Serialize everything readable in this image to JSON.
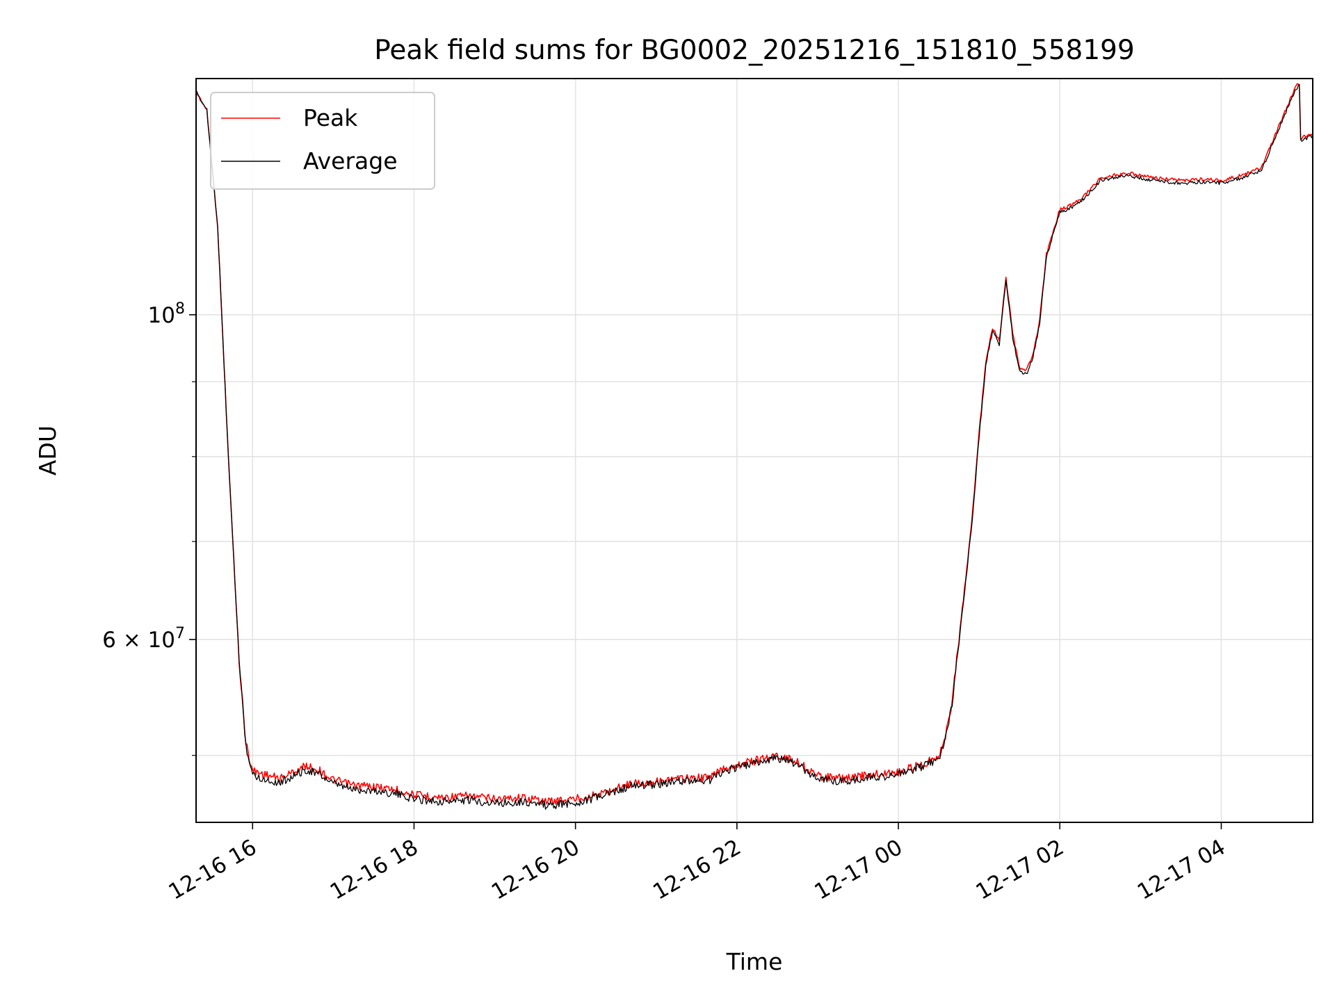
{
  "chart_data": {
    "type": "line",
    "title": "Peak field sums for BG0002_20251216_151810_558199",
    "xlabel": "Time",
    "ylabel": "ADU",
    "y_scale": "log",
    "grid": true,
    "legend_position": "top-left",
    "xlim": [
      "2025-12-16 15:18",
      "2025-12-17 05:08"
    ],
    "ylim": [
      45000000,
      145000000
    ],
    "x_ticks": [
      {
        "value": "2025-12-16 16:00",
        "label": "12-16 16"
      },
      {
        "value": "2025-12-16 18:00",
        "label": "12-16 18"
      },
      {
        "value": "2025-12-16 20:00",
        "label": "12-16 20"
      },
      {
        "value": "2025-12-16 22:00",
        "label": "12-16 22"
      },
      {
        "value": "2025-12-17 00:00",
        "label": "12-17 00"
      },
      {
        "value": "2025-12-17 02:00",
        "label": "12-17 02"
      },
      {
        "value": "2025-12-17 04:00",
        "label": "12-17 04"
      }
    ],
    "y_major_ticks": [
      {
        "value": 100000000,
        "mantissa": "",
        "base": "10",
        "exp": "8"
      },
      {
        "value": 60000000,
        "mantissa": "6 × ",
        "base": "10",
        "exp": "7"
      }
    ],
    "y_minor_ticks": [
      50000000,
      70000000,
      80000000,
      90000000
    ],
    "series": [
      {
        "name": "Peak",
        "color": "#ff0000",
        "points": [
          [
            "2025-12-16 15:18",
            142000000
          ],
          [
            "2025-12-16 15:26",
            138000000
          ],
          [
            "2025-12-16 15:34",
            115000000
          ],
          [
            "2025-12-16 15:42",
            80000000
          ],
          [
            "2025-12-16 15:50",
            58000000
          ],
          [
            "2025-12-16 15:55",
            51000000
          ],
          [
            "2025-12-16 16:00",
            48800000
          ],
          [
            "2025-12-16 16:10",
            48500000
          ],
          [
            "2025-12-16 16:20",
            48200000
          ],
          [
            "2025-12-16 16:30",
            48700000
          ],
          [
            "2025-12-16 16:40",
            49200000
          ],
          [
            "2025-12-16 16:50",
            48800000
          ],
          [
            "2025-12-16 17:00",
            48100000
          ],
          [
            "2025-12-16 17:15",
            47700000
          ],
          [
            "2025-12-16 17:30",
            47600000
          ],
          [
            "2025-12-16 17:45",
            47400000
          ],
          [
            "2025-12-16 18:00",
            47000000
          ],
          [
            "2025-12-16 18:20",
            46800000
          ],
          [
            "2025-12-16 18:40",
            46900000
          ],
          [
            "2025-12-16 19:00",
            46700000
          ],
          [
            "2025-12-16 19:20",
            46800000
          ],
          [
            "2025-12-16 19:40",
            46500000
          ],
          [
            "2025-12-16 20:00",
            46700000
          ],
          [
            "2025-12-16 20:20",
            47100000
          ],
          [
            "2025-12-16 20:40",
            47800000
          ],
          [
            "2025-12-16 21:00",
            48000000
          ],
          [
            "2025-12-16 21:20",
            48200000
          ],
          [
            "2025-12-16 21:40",
            48300000
          ],
          [
            "2025-12-16 21:50",
            49000000
          ],
          [
            "2025-12-16 22:10",
            49500000
          ],
          [
            "2025-12-16 22:30",
            50000000
          ],
          [
            "2025-12-16 22:45",
            49500000
          ],
          [
            "2025-12-16 23:00",
            48400000
          ],
          [
            "2025-12-16 23:20",
            48200000
          ],
          [
            "2025-12-16 23:40",
            48500000
          ],
          [
            "2025-12-17 00:00",
            48700000
          ],
          [
            "2025-12-17 00:20",
            49400000
          ],
          [
            "2025-12-17 00:30",
            50000000
          ],
          [
            "2025-12-17 00:35",
            51500000
          ],
          [
            "2025-12-17 00:40",
            54500000
          ],
          [
            "2025-12-17 00:45",
            60000000
          ],
          [
            "2025-12-17 00:50",
            66000000
          ],
          [
            "2025-12-17 00:55",
            73000000
          ],
          [
            "2025-12-17 01:00",
            83000000
          ],
          [
            "2025-12-17 01:05",
            93000000
          ],
          [
            "2025-12-17 01:10",
            98000000
          ],
          [
            "2025-12-17 01:15",
            96000000
          ],
          [
            "2025-12-17 01:20",
            106000000
          ],
          [
            "2025-12-17 01:25",
            97000000
          ],
          [
            "2025-12-17 01:30",
            92000000
          ],
          [
            "2025-12-17 01:35",
            91500000
          ],
          [
            "2025-12-17 01:40",
            94000000
          ],
          [
            "2025-12-17 01:45",
            99000000
          ],
          [
            "2025-12-17 01:50",
            110000000
          ],
          [
            "2025-12-17 02:00",
            118000000
          ],
          [
            "2025-12-17 02:10",
            119000000
          ],
          [
            "2025-12-17 02:20",
            121000000
          ],
          [
            "2025-12-17 02:30",
            124000000
          ],
          [
            "2025-12-17 02:50",
            125000000
          ],
          [
            "2025-12-17 03:10",
            124000000
          ],
          [
            "2025-12-17 03:30",
            123500000
          ],
          [
            "2025-12-17 03:50",
            123800000
          ],
          [
            "2025-12-17 04:00",
            123500000
          ],
          [
            "2025-12-17 04:15",
            124500000
          ],
          [
            "2025-12-17 04:30",
            126000000
          ],
          [
            "2025-12-17 04:45",
            136000000
          ],
          [
            "2025-12-17 04:55",
            143000000
          ],
          [
            "2025-12-17 04:58",
            144000000
          ],
          [
            "2025-12-17 04:59",
            132000000
          ],
          [
            "2025-12-17 05:08",
            133000000
          ]
        ]
      },
      {
        "name": "Average",
        "color": "#000000",
        "points": [
          [
            "2025-12-16 15:18",
            142000000
          ],
          [
            "2025-12-16 15:26",
            138000000
          ],
          [
            "2025-12-16 15:34",
            115000000
          ],
          [
            "2025-12-16 15:42",
            80000000
          ],
          [
            "2025-12-16 15:50",
            58000000
          ],
          [
            "2025-12-16 15:55",
            50800000
          ],
          [
            "2025-12-16 16:00",
            48500000
          ],
          [
            "2025-12-16 16:10",
            48100000
          ],
          [
            "2025-12-16 16:20",
            47900000
          ],
          [
            "2025-12-16 16:30",
            48400000
          ],
          [
            "2025-12-16 16:40",
            48900000
          ],
          [
            "2025-12-16 16:50",
            48500000
          ],
          [
            "2025-12-16 17:00",
            47800000
          ],
          [
            "2025-12-16 17:15",
            47400000
          ],
          [
            "2025-12-16 17:30",
            47300000
          ],
          [
            "2025-12-16 17:45",
            47100000
          ],
          [
            "2025-12-16 18:00",
            46700000
          ],
          [
            "2025-12-16 18:20",
            46500000
          ],
          [
            "2025-12-16 18:40",
            46600000
          ],
          [
            "2025-12-16 19:00",
            46400000
          ],
          [
            "2025-12-16 19:20",
            46500000
          ],
          [
            "2025-12-16 19:40",
            46200000
          ],
          [
            "2025-12-16 20:00",
            46400000
          ],
          [
            "2025-12-16 20:20",
            46900000
          ],
          [
            "2025-12-16 20:40",
            47600000
          ],
          [
            "2025-12-16 21:00",
            47800000
          ],
          [
            "2025-12-16 21:20",
            48000000
          ],
          [
            "2025-12-16 21:40",
            48100000
          ],
          [
            "2025-12-16 21:50",
            48800000
          ],
          [
            "2025-12-16 22:10",
            49300000
          ],
          [
            "2025-12-16 22:30",
            49800000
          ],
          [
            "2025-12-16 22:45",
            49300000
          ],
          [
            "2025-12-16 23:00",
            48200000
          ],
          [
            "2025-12-16 23:20",
            48000000
          ],
          [
            "2025-12-16 23:40",
            48300000
          ],
          [
            "2025-12-17 00:00",
            48500000
          ],
          [
            "2025-12-17 00:20",
            49200000
          ],
          [
            "2025-12-17 00:30",
            49800000
          ],
          [
            "2025-12-17 00:35",
            51300000
          ],
          [
            "2025-12-17 00:40",
            54200000
          ],
          [
            "2025-12-17 00:45",
            59700000
          ],
          [
            "2025-12-17 00:50",
            65700000
          ],
          [
            "2025-12-17 00:55",
            72500000
          ],
          [
            "2025-12-17 01:00",
            82500000
          ],
          [
            "2025-12-17 01:05",
            92500000
          ],
          [
            "2025-12-17 01:10",
            97500000
          ],
          [
            "2025-12-17 01:15",
            95500000
          ],
          [
            "2025-12-17 01:20",
            105500000
          ],
          [
            "2025-12-17 01:25",
            96500000
          ],
          [
            "2025-12-17 01:30",
            91500000
          ],
          [
            "2025-12-17 01:35",
            91000000
          ],
          [
            "2025-12-17 01:40",
            93500000
          ],
          [
            "2025-12-17 01:45",
            98500000
          ],
          [
            "2025-12-17 01:50",
            109500000
          ],
          [
            "2025-12-17 02:00",
            117500000
          ],
          [
            "2025-12-17 02:10",
            118500000
          ],
          [
            "2025-12-17 02:20",
            120500000
          ],
          [
            "2025-12-17 02:30",
            123500000
          ],
          [
            "2025-12-17 02:50",
            124500000
          ],
          [
            "2025-12-17 03:10",
            123500000
          ],
          [
            "2025-12-17 03:30",
            123000000
          ],
          [
            "2025-12-17 03:50",
            123300000
          ],
          [
            "2025-12-17 04:00",
            123000000
          ],
          [
            "2025-12-17 04:15",
            124000000
          ],
          [
            "2025-12-17 04:30",
            125500000
          ],
          [
            "2025-12-17 04:45",
            135500000
          ],
          [
            "2025-12-17 04:55",
            142500000
          ],
          [
            "2025-12-17 04:58",
            143500000
          ],
          [
            "2025-12-17 04:59",
            131500000
          ],
          [
            "2025-12-17 05:08",
            132500000
          ]
        ]
      }
    ]
  }
}
